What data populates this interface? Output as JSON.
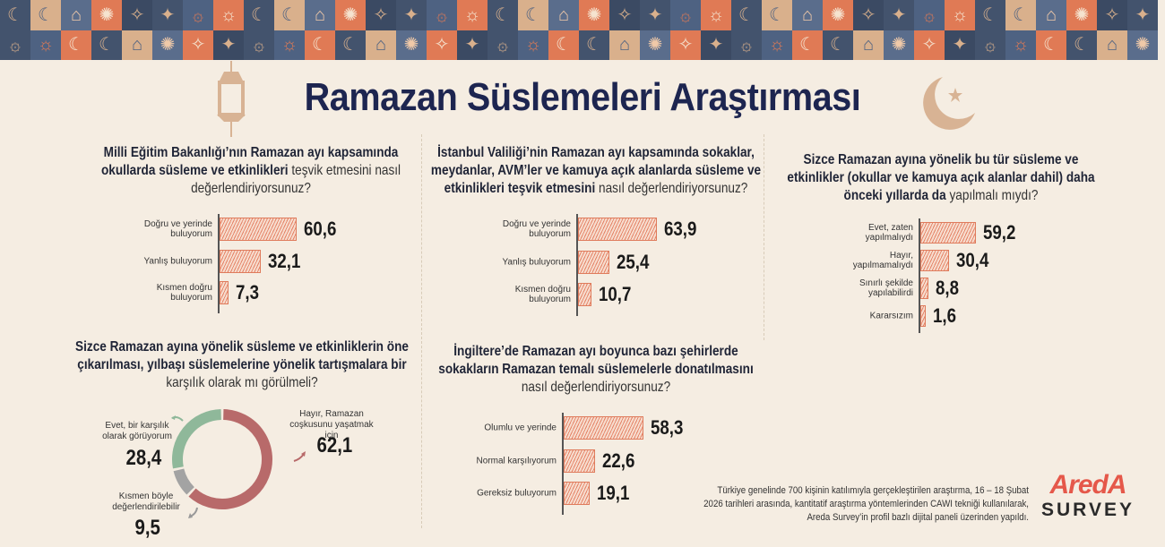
{
  "title": "Ramazan Süslemeleri Araştırması",
  "colors": {
    "navy": "#1d2550",
    "bar_fill": "#f7ddcf",
    "bar_stroke": "#df7b5c",
    "donut_red": "#b86a6a",
    "donut_green": "#8fb89a",
    "donut_gray": "#a3a3a3",
    "banner_blue": "#43536d",
    "banner_orange": "#e07a55",
    "banner_tan": "#d9b08c"
  },
  "questions": {
    "q1": {
      "bold": "Milli Eğitim Bakanlığı’nın Ramazan ayı kapsamında okullarda süsleme ve etkinlikleri",
      "normal": " teşvik etmesini nasıl değerlendiriyorsunuz?"
    },
    "q2": {
      "bold": "İstanbul Valiliği’nin Ramazan ayı kapsamında sokaklar, meydanlar, AVM’ler ve kamuya açık alanlarda süsleme ve etkinlikleri teşvik etmesini",
      "normal": " nasıl değerlendiriyorsunuz?"
    },
    "q3": {
      "bold": "Sizce Ramazan ayına yönelik bu tür süsleme ve etkinlikler (okullar ve kamuya açık alanlar dahil) daha önceki yıllarda da",
      "normal": " yapılmalı mıydı?"
    },
    "q4": {
      "bold": "Sizce Ramazan ayına yönelik süsleme ve etkinliklerin öne çıkarılması, yılbaşı süslemelerine yönelik tartışmalara bir",
      "normal": " karşılık olarak mı görülmeli?"
    },
    "q5": {
      "bold": "İngiltere’de Ramazan ayı boyunca bazı şehirlerde sokakların Ramazan temalı süslemelerle donatılmasını",
      "normal": " nasıl değerlendiriyorsunuz?"
    }
  },
  "chart_data": [
    {
      "type": "bar",
      "orientation": "horizontal",
      "categories": [
        "Doğru ve yerinde buluyorum",
        "Yanlış buluyorum",
        "Kısmen doğru buluyorum"
      ],
      "values": [
        60.6,
        32.1,
        7.3
      ],
      "labels": [
        "60,6",
        "32,1",
        "7,3"
      ]
    },
    {
      "type": "bar",
      "orientation": "horizontal",
      "categories": [
        "Doğru ve yerinde buluyorum",
        "Yanlış buluyorum",
        "Kısmen doğru buluyorum"
      ],
      "values": [
        63.9,
        25.4,
        10.7
      ],
      "labels": [
        "63,9",
        "25,4",
        "10,7"
      ]
    },
    {
      "type": "bar",
      "orientation": "horizontal",
      "categories": [
        "Evet, zaten yapılmalıydı",
        "Hayır, yapılmamalıydı",
        "Sınırlı şekilde yapılabilirdi",
        "Kararsızım"
      ],
      "values": [
        59.2,
        30.4,
        8.8,
        1.6
      ],
      "labels": [
        "59,2",
        "30,4",
        "8,8",
        "1,6"
      ]
    },
    {
      "type": "pie",
      "variant": "donut",
      "categories": [
        "Hayır, Ramazan coşkusunu yaşatmak için",
        "Kısmen böyle değerlendirilebilir",
        "Evet, bir karşılık olarak görüyorum"
      ],
      "values": [
        62.1,
        9.5,
        28.4
      ],
      "labels": [
        "62,1",
        "9,5",
        "28,4"
      ]
    },
    {
      "type": "bar",
      "orientation": "horizontal",
      "categories": [
        "Olumlu ve yerinde",
        "Normal karşılıyorum",
        "Gereksiz buluyorum"
      ],
      "values": [
        58.3,
        22.6,
        19.1
      ],
      "labels": [
        "58,3",
        "22,6",
        "19,1"
      ]
    }
  ],
  "footnote": "Türkiye genelinde 700 kişinin katılımıyla gerçekleştirilen araştırma, 16 – 18 Şubat 2026 tarihleri arasında, kantitatif araştırma yöntemlerinden CAWI tekniği kullanılarak, Areda Survey’in profil bazlı dijital paneli üzerinden yapıldı.",
  "logo": {
    "top": "AredA",
    "bottom": "SURVEY"
  }
}
